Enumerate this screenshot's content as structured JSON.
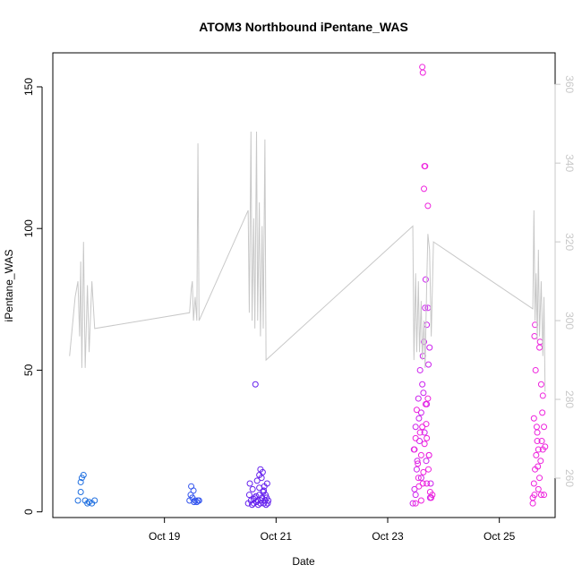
{
  "chart_data": {
    "type": "scatter",
    "title": "ATOM3 Northbound iPentane_WAS",
    "xlabel": "Date",
    "ylabel": "iPentane_WAS",
    "x_ticks": [
      {
        "value": 19,
        "label": "Oct 19"
      },
      {
        "value": 21,
        "label": "Oct 21"
      },
      {
        "value": 23,
        "label": "Oct 23"
      },
      {
        "value": 25,
        "label": "Oct 25"
      }
    ],
    "xlim": [
      17.0,
      26.0
    ],
    "y_ticks": [
      0,
      50,
      100,
      150
    ],
    "ylim": [
      -2,
      162
    ],
    "y2_ticks": [
      260,
      280,
      300,
      320,
      340,
      360
    ],
    "y2lim": [
      250,
      368
    ],
    "y2_color": "#c8c8c8",
    "grid": false,
    "legend": "none",
    "series": [
      {
        "kind": "points",
        "color": "#1f6fe0",
        "points": [
          [
            17.45,
            4
          ],
          [
            17.5,
            10.5
          ],
          [
            17.52,
            12
          ],
          [
            17.55,
            13
          ],
          [
            17.5,
            7
          ],
          [
            17.58,
            4
          ],
          [
            17.62,
            3
          ],
          [
            17.65,
            3.5
          ],
          [
            17.7,
            3
          ],
          [
            17.75,
            4
          ]
        ]
      },
      {
        "kind": "points",
        "color": "#3355ee",
        "points": [
          [
            19.45,
            4
          ],
          [
            19.48,
            9
          ],
          [
            19.5,
            5
          ],
          [
            19.52,
            7.5
          ],
          [
            19.55,
            4
          ],
          [
            19.58,
            3.5
          ],
          [
            19.6,
            4
          ],
          [
            19.62,
            4
          ],
          [
            19.53,
            3.5
          ],
          [
            19.47,
            6
          ]
        ]
      },
      {
        "kind": "points",
        "color": "#6622ee",
        "points": [
          [
            20.5,
            3
          ],
          [
            20.52,
            6
          ],
          [
            20.55,
            4
          ],
          [
            20.57,
            2.5
          ],
          [
            20.58,
            8
          ],
          [
            20.6,
            3
          ],
          [
            20.62,
            5
          ],
          [
            20.63,
            45
          ],
          [
            20.65,
            3.5
          ],
          [
            20.67,
            4
          ],
          [
            20.68,
            2.5
          ],
          [
            20.7,
            6
          ],
          [
            20.72,
            3
          ],
          [
            20.73,
            4
          ],
          [
            20.75,
            5
          ],
          [
            20.77,
            7
          ],
          [
            20.78,
            3
          ],
          [
            20.8,
            4
          ],
          [
            20.82,
            2.5
          ],
          [
            20.83,
            5
          ],
          [
            20.85,
            3
          ],
          [
            20.53,
            10
          ],
          [
            20.66,
            11
          ],
          [
            20.7,
            13
          ],
          [
            20.72,
            15
          ],
          [
            20.74,
            12
          ],
          [
            20.76,
            14
          ],
          [
            20.79,
            9
          ],
          [
            20.81,
            6
          ],
          [
            20.84,
            10
          ],
          [
            20.6,
            4.5
          ],
          [
            20.64,
            5.5
          ],
          [
            20.7,
            8.5
          ],
          [
            20.78,
            7.5
          ],
          [
            20.86,
            4
          ]
        ]
      },
      {
        "kind": "points",
        "color": "#cc22ee",
        "points": [
          [
            23.45,
            3
          ],
          [
            23.47,
            22
          ],
          [
            23.48,
            8
          ],
          [
            23.5,
            30
          ],
          [
            23.52,
            15
          ],
          [
            23.55,
            40
          ],
          [
            23.57,
            25
          ],
          [
            23.58,
            50
          ],
          [
            23.6,
            35
          ],
          [
            23.62,
            45
          ],
          [
            23.63,
            55
          ],
          [
            23.65,
            60
          ],
          [
            23.67,
            72
          ],
          [
            23.68,
            82
          ],
          [
            23.7,
            66
          ],
          [
            23.72,
            72
          ],
          [
            23.73,
            52
          ],
          [
            23.75,
            58
          ],
          [
            23.53,
            18
          ],
          [
            23.6,
            12
          ],
          [
            23.66,
            28
          ],
          [
            23.7,
            38
          ],
          [
            23.74,
            20
          ],
          [
            23.77,
            10
          ],
          [
            23.5,
            6
          ],
          [
            23.56,
            33
          ],
          [
            23.64,
            42
          ],
          [
            23.69,
            18
          ],
          [
            23.76,
            5
          ]
        ]
      },
      {
        "kind": "points",
        "color": "#ee22dd",
        "points": [
          [
            23.62,
            157
          ],
          [
            23.63,
            155
          ],
          [
            23.66,
            122
          ],
          [
            23.67,
            122
          ],
          [
            23.65,
            114
          ],
          [
            23.72,
            108
          ],
          [
            23.48,
            22
          ],
          [
            23.5,
            26
          ],
          [
            23.52,
            36
          ],
          [
            23.54,
            17
          ],
          [
            23.56,
            9
          ],
          [
            23.58,
            28
          ],
          [
            23.6,
            20
          ],
          [
            23.62,
            30
          ],
          [
            23.64,
            14
          ],
          [
            23.66,
            24
          ],
          [
            23.68,
            38
          ],
          [
            23.7,
            26
          ],
          [
            23.72,
            40
          ],
          [
            23.74,
            20
          ],
          [
            23.76,
            7
          ],
          [
            23.78,
            5
          ],
          [
            23.8,
            6
          ],
          [
            23.55,
            12
          ],
          [
            23.6,
            4
          ],
          [
            23.63,
            10
          ],
          [
            23.69,
            31
          ],
          [
            23.73,
            15
          ],
          [
            23.5,
            3
          ],
          [
            23.7,
            10
          ],
          [
            25.6,
            5
          ],
          [
            25.62,
            33
          ],
          [
            25.63,
            62
          ],
          [
            25.64,
            66
          ],
          [
            25.65,
            50
          ],
          [
            25.67,
            30
          ],
          [
            25.68,
            25
          ],
          [
            25.7,
            22
          ],
          [
            25.72,
            58
          ],
          [
            25.73,
            60
          ],
          [
            25.75,
            45
          ],
          [
            25.77,
            35
          ],
          [
            25.78,
            41
          ],
          [
            25.8,
            30
          ],
          [
            25.62,
            10
          ],
          [
            25.64,
            15
          ],
          [
            25.66,
            20
          ],
          [
            25.68,
            28
          ],
          [
            25.7,
            8
          ],
          [
            25.72,
            12
          ],
          [
            25.74,
            18
          ],
          [
            25.76,
            25
          ],
          [
            25.78,
            22
          ],
          [
            25.8,
            6
          ],
          [
            25.82,
            23
          ],
          [
            25.6,
            3
          ],
          [
            25.63,
            6
          ],
          [
            25.69,
            16
          ],
          [
            25.75,
            6
          ]
        ]
      },
      {
        "kind": "line",
        "axis": "right",
        "color": "#c8c8c8",
        "points": [
          [
            17.3,
            291
          ],
          [
            17.4,
            306
          ],
          [
            17.45,
            310
          ],
          [
            17.48,
            296
          ],
          [
            17.5,
            315
          ],
          [
            17.52,
            288
          ],
          [
            17.55,
            320
          ],
          [
            17.58,
            288
          ],
          [
            17.62,
            309
          ],
          [
            17.65,
            292
          ],
          [
            17.7,
            310
          ],
          [
            17.75,
            298
          ],
          [
            19.45,
            302
          ],
          [
            19.48,
            308
          ],
          [
            19.5,
            310
          ],
          [
            19.52,
            300
          ],
          [
            19.55,
            306
          ],
          [
            19.58,
            300
          ],
          [
            19.6,
            345
          ],
          [
            19.62,
            300
          ],
          [
            20.5,
            328
          ],
          [
            20.52,
            302
          ],
          [
            20.55,
            348
          ],
          [
            20.57,
            300
          ],
          [
            20.6,
            326
          ],
          [
            20.62,
            298
          ],
          [
            20.65,
            348
          ],
          [
            20.67,
            300
          ],
          [
            20.7,
            330
          ],
          [
            20.72,
            296
          ],
          [
            20.75,
            324
          ],
          [
            20.77,
            298
          ],
          [
            20.8,
            346
          ],
          [
            20.82,
            290
          ],
          [
            23.45,
            324
          ],
          [
            23.47,
            290
          ],
          [
            23.5,
            312
          ],
          [
            23.52,
            292
          ],
          [
            23.55,
            310
          ],
          [
            23.57,
            292
          ],
          [
            23.6,
            305
          ],
          [
            23.62,
            290
          ],
          [
            23.65,
            300
          ],
          [
            23.67,
            288
          ],
          [
            23.7,
            310
          ],
          [
            23.72,
            322
          ],
          [
            23.75,
            318
          ],
          [
            23.78,
            296
          ],
          [
            23.82,
            320
          ],
          [
            25.6,
            303
          ],
          [
            25.62,
            328
          ],
          [
            25.64,
            300
          ],
          [
            25.66,
            312
          ],
          [
            25.68,
            295
          ],
          [
            25.7,
            318
          ],
          [
            25.72,
            296
          ],
          [
            25.75,
            310
          ],
          [
            25.78,
            291
          ],
          [
            25.8,
            306
          ],
          [
            25.82,
            282
          ]
        ]
      }
    ]
  }
}
